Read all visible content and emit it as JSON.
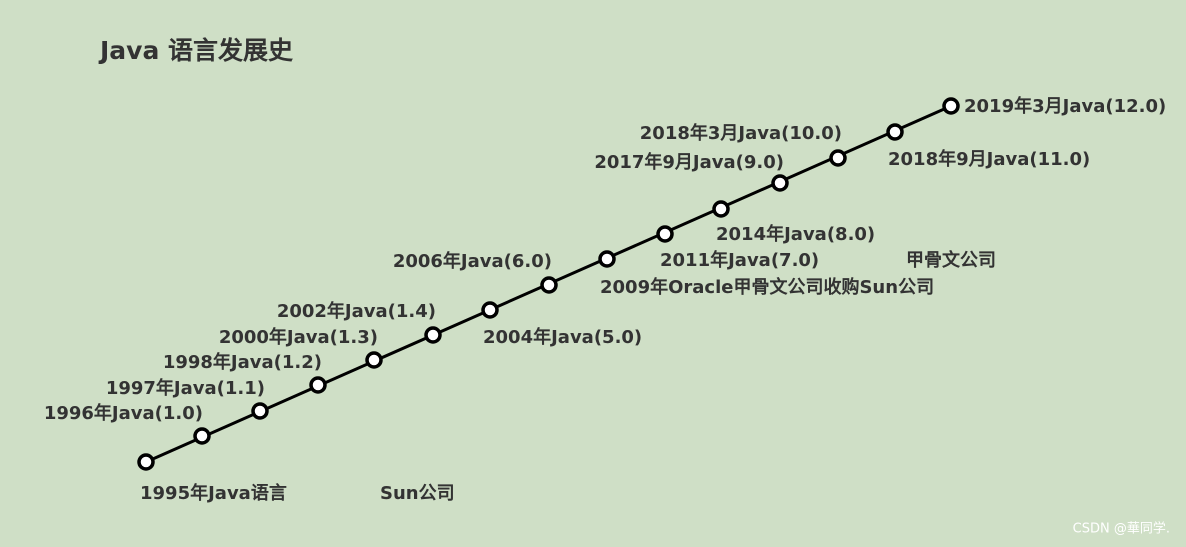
{
  "title": "Java 语言发展史",
  "nodes": [
    {
      "label": "1995年Java语言"
    },
    {
      "label": "1996年Java(1.0)"
    },
    {
      "label": "1997年Java(1.1)"
    },
    {
      "label": "1998年Java(1.2)"
    },
    {
      "label": "2000年Java(1.3)"
    },
    {
      "label": "2002年Java(1.4)"
    },
    {
      "label": "2004年Java(5.0)"
    },
    {
      "label": "2006年Java(6.0)"
    },
    {
      "label": "2009年Oracle甲骨文公司收购Sun公司"
    },
    {
      "label": "2011年Java(7.0)"
    },
    {
      "label": "2014年Java(8.0)"
    },
    {
      "label": "2017年9月Java(9.0)"
    },
    {
      "label": "2018年3月Java(10.0)"
    },
    {
      "label": "2018年9月Java(11.0)"
    },
    {
      "label": "2019年3月Java(12.0)"
    }
  ],
  "notes": [
    "Sun公司",
    "甲骨文公司"
  ],
  "watermark": "CSDN @華同学."
}
